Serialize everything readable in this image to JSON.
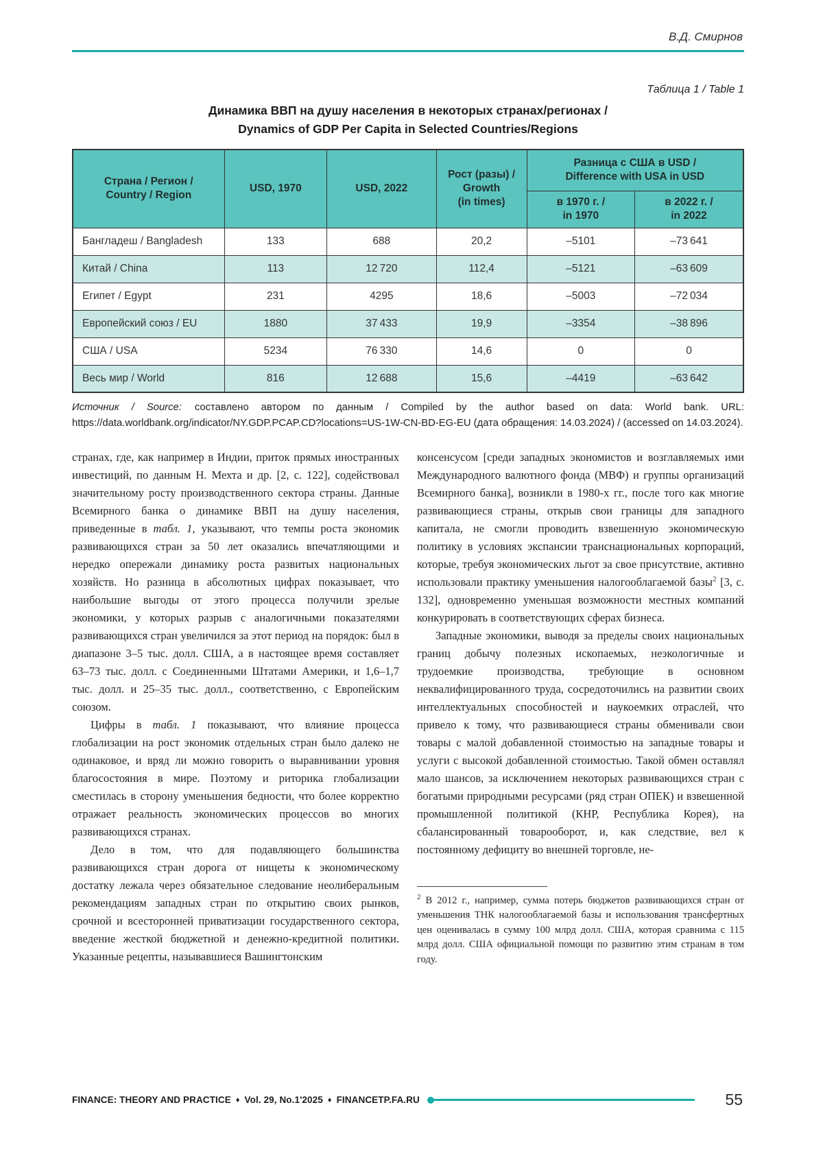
{
  "colors": {
    "accent_teal": "#18ada6",
    "header_teal": "#5cc4be",
    "row_teal": "#c9e8e5",
    "border_dark": "#333333"
  },
  "running_head": "В.Д. Смирнов",
  "table_block": {
    "caption": "Таблица 1 / Table 1",
    "title": "Динамика ВВП на душу населения в некоторых странах/регионах /\nDynamics of GDP Per Capita in Selected Countries/Regions",
    "headers": {
      "country": "Страна / Регион /\nCountry / Region",
      "usd_1970": "USD, 1970",
      "usd_2022": "USD, 2022",
      "growth": "Рост (разы) /\nGrowth\n(in times)",
      "diff_group": "Разница с США в USD /\nDifference with USA in USD",
      "diff_1970": "в 1970 г. /\nin 1970",
      "diff_2022": "в 2022 г. /\nin 2022"
    },
    "rows": [
      [
        "Бангладеш / Bangladesh",
        "133",
        "688",
        "20,2",
        "–5101",
        "–73 641"
      ],
      [
        "Китай / China",
        "113",
        "12 720",
        "112,4",
        "–5121",
        "–63 609"
      ],
      [
        "Египет / Egypt",
        "231",
        "4295",
        "18,6",
        "–5003",
        "–72 034"
      ],
      [
        "Европейский союз / EU",
        "1880",
        "37 433",
        "19,9",
        "–3354",
        "–38 896"
      ],
      [
        "США / USA",
        "5234",
        "76 330",
        "14,6",
        "0",
        "0"
      ],
      [
        "Весь мир / World",
        "816",
        "12 688",
        "15,6",
        "–4419",
        "–63 642"
      ]
    ]
  },
  "source_note": {
    "runs": [
      {
        "t": "Источник / Source: ",
        "i": true
      },
      {
        "t": "составлено автором по данным / Compiled by the author based on data: World bank. URL: https://data.worldbank.org/indicator/NY.GDP.PCAP.CD?locations=US-1W-CN-BD-EG-EU (дата обращения: 14.03.2024) / (accessed on 14.03.2024)."
      }
    ]
  },
  "body": {
    "left": {
      "paragraphs": [
        {
          "indent": false,
          "runs": [
            {
              "t": "странах, где, как например в Индии, приток прямых иностранных инвестиций, по данным Н. Мехта и др. [2, с. 122], содействовал значительному росту производственного сектора страны. Данные Всемирного банка о динамике ВВП на душу населения, приведенные в "
            },
            {
              "t": "табл. 1,",
              "i": true
            },
            {
              "t": " указывают, что темпы роста экономик развивающихся стран за 50 лет оказались впечатляющими и нередко опережали динамику роста развитых национальных хозяйств. Но разница в абсолютных цифрах показывает, что наибольшие выгоды от этого процесса получили зрелые экономики, у которых разрыв с аналогичными показателями развивающихся стран увеличился за этот период на порядок: был в диапазоне 3–5 тыс. долл. США, а в настоящее время составляет 63–73 тыс. долл. с Соединенными Штатами Америки, и 1,6–1,7 тыс. долл. и 25–35 тыс. долл., соответственно, с Европейским союзом."
            }
          ]
        },
        {
          "indent": true,
          "runs": [
            {
              "t": "Цифры в "
            },
            {
              "t": "табл. 1",
              "i": true
            },
            {
              "t": " показывают, что влияние процесса глобализации на рост экономик отдельных стран было далеко не одинаковое, и вряд ли можно говорить о выравнивании уровня благосостояния в мире. Поэтому и риторика глобализации сместилась в сторону уменьшения бедности, что более корректно отражает реальность экономических процессов во многих развивающихся странах."
            }
          ]
        },
        {
          "indent": true,
          "runs": [
            {
              "t": "Дело в том, что для подавляющего большинства развивающихся стран дорога от нищеты к экономическому достатку лежала через обязательное следование неолиберальным рекомендациям западных стран по открытию своих рынков, срочной и всесторонней приватизации государственного сектора, введение жесткой бюджетной и денежно-кредитной политики. Указанные рецепты, называвшиеся Вашингтонским"
            }
          ]
        }
      ]
    },
    "right": {
      "paragraphs": [
        {
          "indent": false,
          "runs": [
            {
              "t": "консенсусом [среди западных экономистов и возглавляемых ими Международного валютного фонда (МВФ) и группы организаций Всемирного банка], возникли в 1980-х гг., после того как многие развивающиеся страны, открыв свои границы для западного капитала, не смогли проводить взвешенную экономическую политику в условиях экспансии транснациональных корпораций, которые, требуя экономических льгот за свое присутствие, активно использовали практику уменьшения налогооблагаемой базы"
            },
            {
              "t": "2",
              "sup": true
            },
            {
              "t": " [3, с. 132], одновременно уменьшая возможности местных компаний конкурировать в соответствующих сферах бизнеса."
            }
          ]
        },
        {
          "indent": true,
          "runs": [
            {
              "t": "Западные экономики, выводя за пределы своих национальных границ добычу полезных ископаемых, неэкологичные и трудоемкие производства, требующие в основном неквалифицированного труда, сосредоточились на развитии своих интеллектуальных способностей и наукоемких отраслей, что привело к тому, что развивающиеся страны обменивали свои товары с малой добавленной стоимостью на западные товары и услуги с высокой добавленной стоимостью. Такой обмен оставлял мало шансов, за исключением некоторых развивающихся стран с богатыми природными ресурсами (ряд стран ОПЕК) и взвешенной промышленной политикой (КНР, Республика Корея), на сбалансированный товарооборот, и, как следствие, вел к постоянному дефициту во внешней торговле, не-"
            }
          ]
        }
      ]
    }
  },
  "footnote": {
    "marker": "2",
    "text": " В 2012 г., например, сумма потерь бюджетов развивающихся стран от уменьшения ТНК налогооблагаемой базы и использования трансфертных цен оценивалась в сумму 100 млрд долл. США, которая сравнима с 115 млрд долл. США официальной помощи по развитию этим странам в том году."
  },
  "footer": {
    "journal": "FINANCE: THEORY AND PRACTICE",
    "issue": "Vol. 29, No.1'2025",
    "site": "FINANCETP.FA.RU",
    "separator": "♦",
    "page_number": "55"
  }
}
